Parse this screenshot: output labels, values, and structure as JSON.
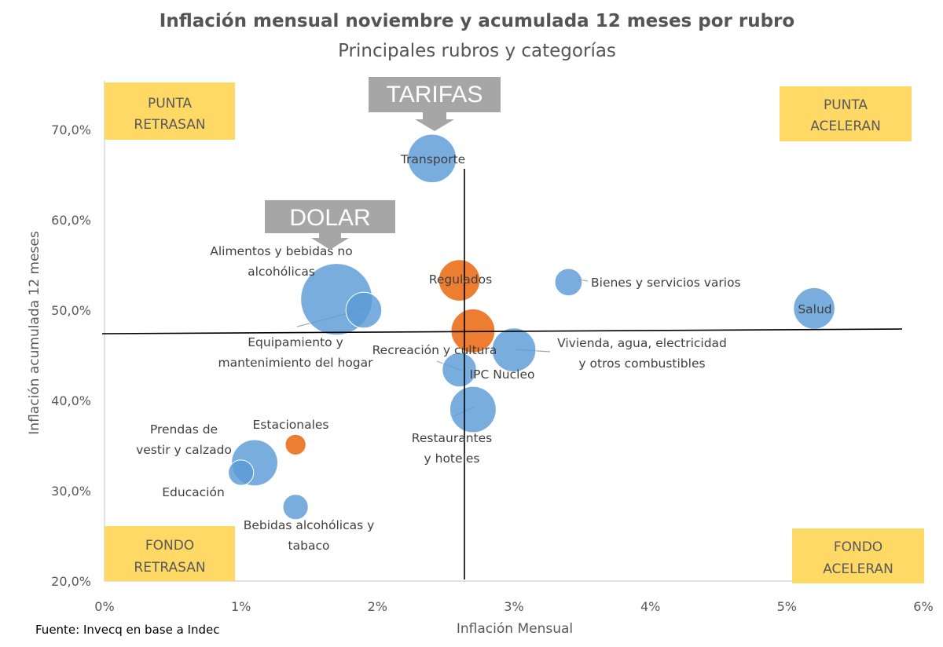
{
  "chart_data": {
    "type": "scatter",
    "title": "Inflación mensual noviembre y acumulada 12 meses por rubro",
    "subtitle": "Principales rubros y categorías",
    "xlabel": "Inflación Mensual",
    "ylabel": "Inflación acumulada 12 meses",
    "xlim": [
      0,
      6
    ],
    "ylim": [
      20,
      75
    ],
    "x_ticks": [
      "0%",
      "1%",
      "2%",
      "3%",
      "4%",
      "5%",
      "6%"
    ],
    "x_tick_values": [
      0,
      1,
      2,
      3,
      4,
      5,
      6
    ],
    "y_ticks": [
      "20,0%",
      "30,0%",
      "40,0%",
      "50,0%",
      "60,0%",
      "70,0%"
    ],
    "y_tick_values": [
      20,
      30,
      40,
      50,
      60,
      70
    ],
    "grid": false,
    "reference_lines": {
      "vertical_x": 2.6,
      "horizontal_y": 47.4
    },
    "points": [
      {
        "label": "Transporte",
        "x": 2.4,
        "y": 66.8,
        "size": 11,
        "color": "#5B9BD5"
      },
      {
        "label": "Alimentos y bebidas no alcohólicas",
        "x": 1.7,
        "y": 51.2,
        "size": 24,
        "color": "#5B9BD5"
      },
      {
        "label": "Equipamiento y mantenimiento del hogar",
        "x": 1.9,
        "y": 50.0,
        "size": 6,
        "color": "#5B9BD5"
      },
      {
        "label": "Regulados",
        "x": 2.6,
        "y": 53.3,
        "size": 8,
        "color": "#ED7D31"
      },
      {
        "label": "Bienes y servicios varios",
        "x": 3.4,
        "y": 53.1,
        "size": 3.5,
        "color": "#5B9BD5"
      },
      {
        "label": "Salud",
        "x": 5.2,
        "y": 50.2,
        "size": 8,
        "color": "#5B9BD5"
      },
      {
        "label": "",
        "x": 2.7,
        "y": 47.7,
        "size": 9,
        "color": "#ED7D31"
      },
      {
        "label": "Vivienda, agua, electricidad y otros combustibles",
        "x": 3.0,
        "y": 45.6,
        "size": 9,
        "color": "#5B9BD5"
      },
      {
        "label": "Recreación y cultura",
        "x": 2.6,
        "y": 43.4,
        "size": 5.5,
        "color": "#5B9BD5"
      },
      {
        "label": "IPC Nucleo",
        "x": 2.6,
        "y": 43.4,
        "size": 0,
        "color": "#ED7D31"
      },
      {
        "label": "Restaurantes y hoteles",
        "x": 2.7,
        "y": 39.0,
        "size": 10,
        "color": "#5B9BD5"
      },
      {
        "label": "Estacionales",
        "x": 1.4,
        "y": 35.1,
        "size": 2,
        "color": "#ED7D31"
      },
      {
        "label": "Prendas de vestir y calzado",
        "x": 1.1,
        "y": 33.1,
        "size": 10,
        "color": "#5B9BD5"
      },
      {
        "label": "Educación",
        "x": 1.0,
        "y": 32.0,
        "size": 3,
        "color": "#5B9BD5"
      },
      {
        "label": "Bebidas alcohólicas y tabaco",
        "x": 1.4,
        "y": 28.2,
        "size": 3,
        "color": "#5B9BD5"
      }
    ],
    "quadrant_labels": [
      {
        "line1": "PUNTA",
        "line2": "RETRASAN"
      },
      {
        "line1": "PUNTA",
        "line2": "ACELERAN"
      },
      {
        "line1": "FONDO",
        "line2": "RETRASAN"
      },
      {
        "line1": "FONDO",
        "line2": "ACELERAN"
      }
    ],
    "callouts": [
      "TARIFAS",
      "DOLAR"
    ],
    "source": "Fuente: Invecq en base a Indec"
  }
}
